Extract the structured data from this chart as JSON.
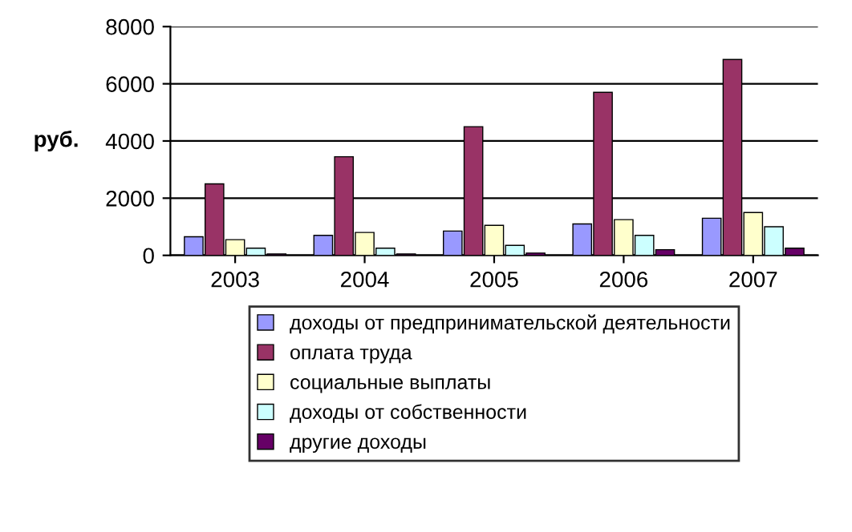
{
  "chart_data": {
    "type": "bar",
    "ylabel": "руб.",
    "categories": [
      "2003",
      "2004",
      "2005",
      "2006",
      "2007"
    ],
    "series": [
      {
        "name": "доходы от предпринимательской деятельности",
        "color": "#9999ff",
        "values": [
          650,
          700,
          850,
          1100,
          1300
        ]
      },
      {
        "name": "оплата труда",
        "color": "#993366",
        "values": [
          2500,
          3450,
          4500,
          5700,
          6850
        ]
      },
      {
        "name": "социальные выплаты",
        "color": "#ffffcc",
        "values": [
          550,
          800,
          1050,
          1250,
          1500
        ]
      },
      {
        "name": "доходы от собственности",
        "color": "#ccffff",
        "values": [
          250,
          250,
          350,
          700,
          1000
        ]
      },
      {
        "name": "другие доходы",
        "color": "#660066",
        "values": [
          50,
          50,
          80,
          200,
          250
        ]
      }
    ],
    "ylim": [
      0,
      8000
    ],
    "yticks": [
      0,
      2000,
      4000,
      6000,
      8000
    ],
    "grid": "y",
    "legend": "bottom"
  }
}
